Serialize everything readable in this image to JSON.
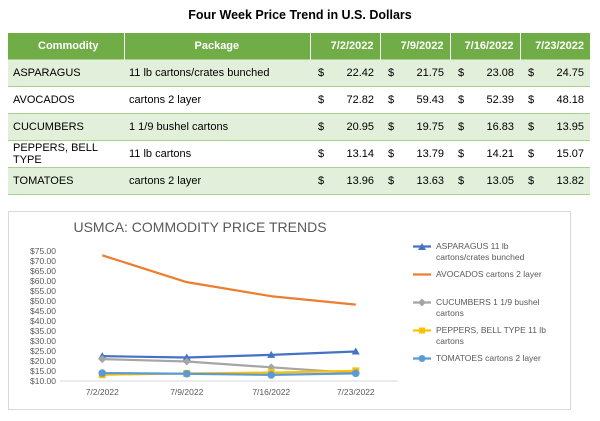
{
  "title": "Four Week Price Trend in U.S. Dollars",
  "table": {
    "headers": [
      "Commodity",
      "Package",
      "7/2/2022",
      "7/9/2022",
      "7/16/2022",
      "7/23/2022"
    ],
    "currency": "$",
    "rows": [
      {
        "commodity": "ASPARAGUS",
        "package": "11 lb cartons/crates bunched",
        "prices": [
          "22.42",
          "21.75",
          "23.08",
          "24.75"
        ]
      },
      {
        "commodity": "AVOCADOS",
        "package": "cartons 2 layer",
        "prices": [
          "72.82",
          "59.43",
          "52.39",
          "48.18"
        ]
      },
      {
        "commodity": "CUCUMBERS",
        "package": "1 1/9 bushel cartons",
        "prices": [
          "20.95",
          "19.75",
          "16.83",
          "13.95"
        ]
      },
      {
        "commodity": "PEPPERS, BELL TYPE",
        "package": "11 lb cartons",
        "prices": [
          "13.14",
          "13.79",
          "14.21",
          "15.07"
        ]
      },
      {
        "commodity": "TOMATOES",
        "package": "cartons 2 layer",
        "prices": [
          "13.96",
          "13.63",
          "13.05",
          "13.82"
        ]
      }
    ]
  },
  "chart_data": {
    "type": "line",
    "title": "USMCA: COMMODITY PRICE TRENDS",
    "categories": [
      "7/2/2022",
      "7/9/2022",
      "7/16/2022",
      "7/23/2022"
    ],
    "ylim": [
      10,
      75
    ],
    "yticks": [
      "$10.00",
      "$15.00",
      "$20.00",
      "$25.00",
      "$30.00",
      "$35.00",
      "$40.00",
      "$45.00",
      "$50.00",
      "$55.00",
      "$60.00",
      "$65.00",
      "$70.00",
      "$75.00"
    ],
    "legend_position": "right",
    "series": [
      {
        "name": "ASPARAGUS 11 lb cartons/crates bunched",
        "color": "#4472c4",
        "marker": "triangle",
        "values": [
          22.42,
          21.75,
          23.08,
          24.75
        ]
      },
      {
        "name": "AVOCADOS cartons 2 layer",
        "color": "#ed7d31",
        "marker": "none",
        "values": [
          72.82,
          59.43,
          52.39,
          48.18
        ]
      },
      {
        "name": "CUCUMBERS 1 1/9 bushel cartons",
        "color": "#a5a5a5",
        "marker": "diamond",
        "values": [
          20.95,
          19.75,
          16.83,
          13.95
        ]
      },
      {
        "name": "PEPPERS, BELL TYPE 11 lb cartons",
        "color": "#ffc000",
        "marker": "square",
        "values": [
          13.14,
          13.79,
          14.21,
          15.07
        ]
      },
      {
        "name": "TOMATOES cartons 2 layer",
        "color": "#5b9bd5",
        "marker": "circle",
        "values": [
          13.96,
          13.63,
          13.05,
          13.82
        ]
      }
    ]
  }
}
